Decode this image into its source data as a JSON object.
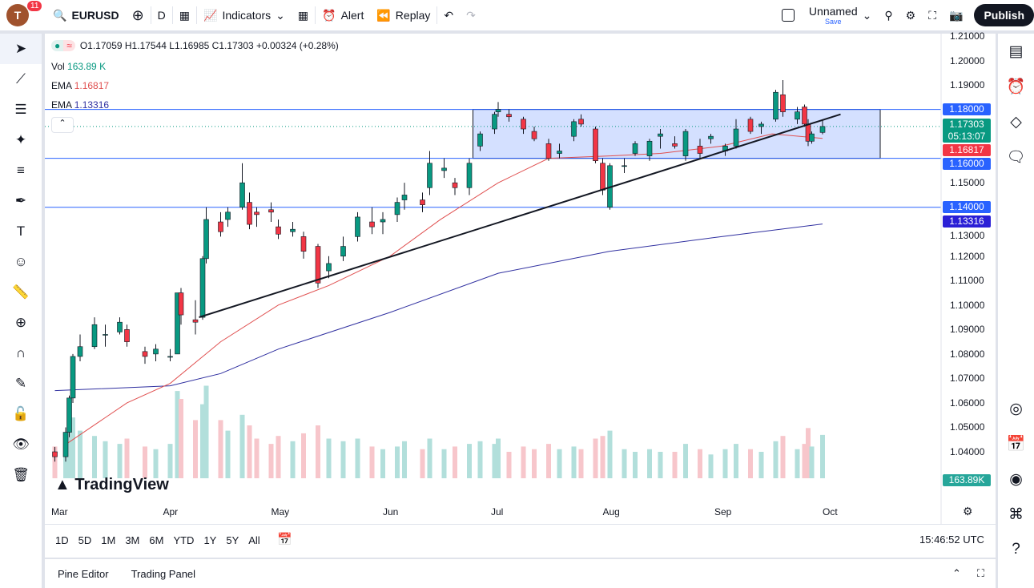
{
  "toolbar": {
    "avatar_letter": "T",
    "notif_count": "11",
    "symbol": "EURUSD",
    "interval": "D",
    "indicators": "Indicators",
    "alert": "Alert",
    "replay": "Replay",
    "layout_name": "Unnamed",
    "save": "Save",
    "publish": "Publish"
  },
  "legend": {
    "ohlc": "O1.17059 H1.17544 L1.16985 C1.17303 +0.00324 (+0.28%)",
    "vol_label": "Vol",
    "vol": "163.89 K",
    "ema1_label": "EMA",
    "ema1": "1.16817",
    "ema2_label": "EMA",
    "ema2": "1.13316"
  },
  "colors": {
    "up": "#089981",
    "down": "#f23645",
    "ema_fast": "#e05050",
    "ema_slow": "#3030a0",
    "hline": "#2962ff",
    "box": "#2962ff"
  },
  "price_axis": {
    "ticks": [
      "1.21000",
      "1.20000",
      "1.19000",
      "1.15000",
      "1.13000",
      "1.12000",
      "1.11000",
      "1.10000",
      "1.09000",
      "1.08000",
      "1.07000",
      "1.06000",
      "1.05000",
      "1.04000"
    ],
    "labels": {
      "l118": "1.18000",
      "last": "1.17303",
      "countdown": "05:13:07",
      "ema_fast": "1.16817",
      "l116": "1.16000",
      "l114": "1.14000",
      "ema_slow": "1.13316",
      "vol": "163.89K"
    }
  },
  "time_axis": [
    "Mar",
    "Apr",
    "May",
    "Jun",
    "Jul",
    "Aug",
    "Sep",
    "Oct"
  ],
  "ranges": [
    "1D",
    "5D",
    "1M",
    "3M",
    "6M",
    "YTD",
    "1Y",
    "5Y",
    "All"
  ],
  "clock": "15:46:52 UTC",
  "bottom_tabs": [
    "Pine Editor",
    "Trading Panel"
  ],
  "watermark": "TradingView",
  "chart_data": {
    "type": "candlestick",
    "symbol": "EURUSD",
    "interval": "D",
    "ylim": [
      1.035,
      1.21
    ],
    "candles": [
      [
        "02-28",
        1.04,
        1.042,
        1.036,
        1.038,
        120
      ],
      [
        "03-03",
        1.038,
        1.05,
        1.036,
        1.048,
        150
      ],
      [
        "03-04",
        1.048,
        1.063,
        1.046,
        1.062,
        200
      ],
      [
        "03-05",
        1.062,
        1.08,
        1.06,
        1.079,
        230
      ],
      [
        "03-07",
        1.079,
        1.088,
        1.077,
        1.083,
        180
      ],
      [
        "03-11",
        1.083,
        1.095,
        1.082,
        1.092,
        160
      ],
      [
        "03-14",
        1.088,
        1.092,
        1.083,
        1.088,
        140
      ],
      [
        "03-18",
        1.089,
        1.095,
        1.088,
        1.093,
        130
      ],
      [
        "03-20",
        1.09,
        1.092,
        1.083,
        1.085,
        150
      ],
      [
        "03-25",
        1.081,
        1.083,
        1.076,
        1.079,
        120
      ],
      [
        "03-28",
        1.08,
        1.084,
        1.077,
        1.082,
        110
      ],
      [
        "04-01",
        1.079,
        1.082,
        1.077,
        1.079,
        130
      ],
      [
        "04-03",
        1.08,
        1.105,
        1.08,
        1.105,
        330
      ],
      [
        "04-04",
        1.105,
        1.107,
        1.092,
        1.096,
        300
      ],
      [
        "04-08",
        1.094,
        1.102,
        1.088,
        1.093,
        220
      ],
      [
        "04-10",
        1.095,
        1.12,
        1.094,
        1.119,
        280
      ],
      [
        "04-11",
        1.119,
        1.14,
        1.117,
        1.135,
        350
      ],
      [
        "04-15",
        1.134,
        1.138,
        1.128,
        1.13,
        220
      ],
      [
        "04-17",
        1.135,
        1.14,
        1.132,
        1.138,
        180
      ],
      [
        "04-21",
        1.14,
        1.158,
        1.139,
        1.15,
        240
      ],
      [
        "04-23",
        1.142,
        1.146,
        1.131,
        1.133,
        200
      ],
      [
        "04-25",
        1.138,
        1.14,
        1.132,
        1.137,
        150
      ],
      [
        "04-29",
        1.139,
        1.142,
        1.134,
        1.138,
        130
      ],
      [
        "05-01",
        1.132,
        1.135,
        1.127,
        1.129,
        160
      ],
      [
        "05-05",
        1.13,
        1.134,
        1.128,
        1.131,
        140
      ],
      [
        "05-08",
        1.128,
        1.13,
        1.119,
        1.122,
        170
      ],
      [
        "05-12",
        1.124,
        1.125,
        1.107,
        1.109,
        200
      ],
      [
        "05-15",
        1.114,
        1.12,
        1.111,
        1.117,
        150
      ],
      [
        "05-19",
        1.12,
        1.128,
        1.118,
        1.124,
        140
      ],
      [
        "05-23",
        1.128,
        1.138,
        1.126,
        1.136,
        150
      ],
      [
        "05-27",
        1.134,
        1.14,
        1.129,
        1.132,
        120
      ],
      [
        "05-30",
        1.134,
        1.138,
        1.129,
        1.135,
        110
      ],
      [
        "06-03",
        1.137,
        1.144,
        1.134,
        1.142,
        120
      ],
      [
        "06-05",
        1.143,
        1.15,
        1.139,
        1.145,
        140
      ],
      [
        "06-10",
        1.143,
        1.146,
        1.138,
        1.141,
        110
      ],
      [
        "06-12",
        1.148,
        1.163,
        1.145,
        1.158,
        150
      ],
      [
        "06-16",
        1.155,
        1.16,
        1.152,
        1.156,
        110
      ],
      [
        "06-19",
        1.15,
        1.152,
        1.145,
        1.148,
        120
      ],
      [
        "06-23",
        1.148,
        1.16,
        1.145,
        1.158,
        130
      ],
      [
        "06-26",
        1.165,
        1.171,
        1.163,
        1.17,
        140
      ],
      [
        "06-30",
        1.172,
        1.179,
        1.17,
        1.178,
        130
      ],
      [
        "07-01",
        1.179,
        1.183,
        1.177,
        1.18,
        150
      ],
      [
        "07-04",
        1.178,
        1.18,
        1.175,
        1.177,
        100
      ],
      [
        "07-08",
        1.176,
        1.177,
        1.17,
        1.172,
        120
      ],
      [
        "07-11",
        1.171,
        1.173,
        1.167,
        1.168,
        110
      ],
      [
        "07-15",
        1.166,
        1.168,
        1.159,
        1.16,
        130
      ],
      [
        "07-18",
        1.162,
        1.166,
        1.16,
        1.163,
        110
      ],
      [
        "07-22",
        1.169,
        1.176,
        1.167,
        1.175,
        120
      ],
      [
        "07-24",
        1.176,
        1.178,
        1.173,
        1.174,
        110
      ],
      [
        "07-28",
        1.172,
        1.173,
        1.158,
        1.159,
        150
      ],
      [
        "07-30",
        1.158,
        1.16,
        1.145,
        1.147,
        160
      ],
      [
        "08-01",
        1.14,
        1.158,
        1.139,
        1.157,
        180
      ],
      [
        "08-05",
        1.157,
        1.16,
        1.154,
        1.157,
        110
      ],
      [
        "08-08",
        1.162,
        1.167,
        1.161,
        1.166,
        100
      ],
      [
        "08-12",
        1.161,
        1.168,
        1.159,
        1.167,
        110
      ],
      [
        "08-15",
        1.169,
        1.172,
        1.164,
        1.17,
        100
      ],
      [
        "08-19",
        1.166,
        1.169,
        1.164,
        1.165,
        100
      ],
      [
        "08-22",
        1.161,
        1.172,
        1.159,
        1.171,
        130
      ],
      [
        "08-26",
        1.165,
        1.168,
        1.16,
        1.162,
        110
      ],
      [
        "08-29",
        1.168,
        1.17,
        1.166,
        1.169,
        90
      ],
      [
        "09-02",
        1.163,
        1.166,
        1.161,
        1.165,
        110
      ],
      [
        "09-05",
        1.165,
        1.176,
        1.164,
        1.172,
        130
      ],
      [
        "09-09",
        1.176,
        1.177,
        1.17,
        1.171,
        110
      ],
      [
        "09-12",
        1.173,
        1.175,
        1.17,
        1.174,
        100
      ],
      [
        "09-16",
        1.176,
        1.188,
        1.175,
        1.187,
        140
      ],
      [
        "09-18",
        1.186,
        1.192,
        1.177,
        1.179,
        160
      ],
      [
        "09-22",
        1.176,
        1.181,
        1.174,
        1.179,
        110
      ],
      [
        "09-24",
        1.181,
        1.182,
        1.173,
        1.174,
        130
      ],
      [
        "09-25",
        1.174,
        1.176,
        1.165,
        1.167,
        190
      ],
      [
        "09-26",
        1.167,
        1.171,
        1.166,
        1.17,
        120
      ],
      [
        "09-29",
        1.17059,
        1.17544,
        1.16985,
        1.17303,
        164
      ]
    ],
    "ema_fast": [
      [
        "03-03",
        1.043
      ],
      [
        "03-20",
        1.06
      ],
      [
        "04-01",
        1.068
      ],
      [
        "04-15",
        1.085
      ],
      [
        "05-01",
        1.1
      ],
      [
        "05-15",
        1.108
      ],
      [
        "06-01",
        1.12
      ],
      [
        "06-15",
        1.135
      ],
      [
        "07-01",
        1.15
      ],
      [
        "07-15",
        1.16
      ],
      [
        "08-01",
        1.161
      ],
      [
        "08-15",
        1.162
      ],
      [
        "09-01",
        1.165
      ],
      [
        "09-15",
        1.17
      ],
      [
        "09-29",
        1.16817
      ]
    ],
    "ema_slow": [
      [
        "02-28",
        1.065
      ],
      [
        "04-01",
        1.067
      ],
      [
        "04-15",
        1.072
      ],
      [
        "05-01",
        1.082
      ],
      [
        "06-01",
        1.097
      ],
      [
        "07-01",
        1.113
      ],
      [
        "08-01",
        1.122
      ],
      [
        "09-01",
        1.128
      ],
      [
        "09-29",
        1.13316
      ]
    ],
    "horizontal_lines": [
      1.18,
      1.16,
      1.14
    ],
    "rectangle": {
      "from": "06-24",
      "to": "10-15",
      "low": 1.16,
      "high": 1.18
    },
    "trend_line": [
      [
        "04-09",
        1.095
      ],
      [
        "10-04",
        1.178
      ]
    ]
  }
}
